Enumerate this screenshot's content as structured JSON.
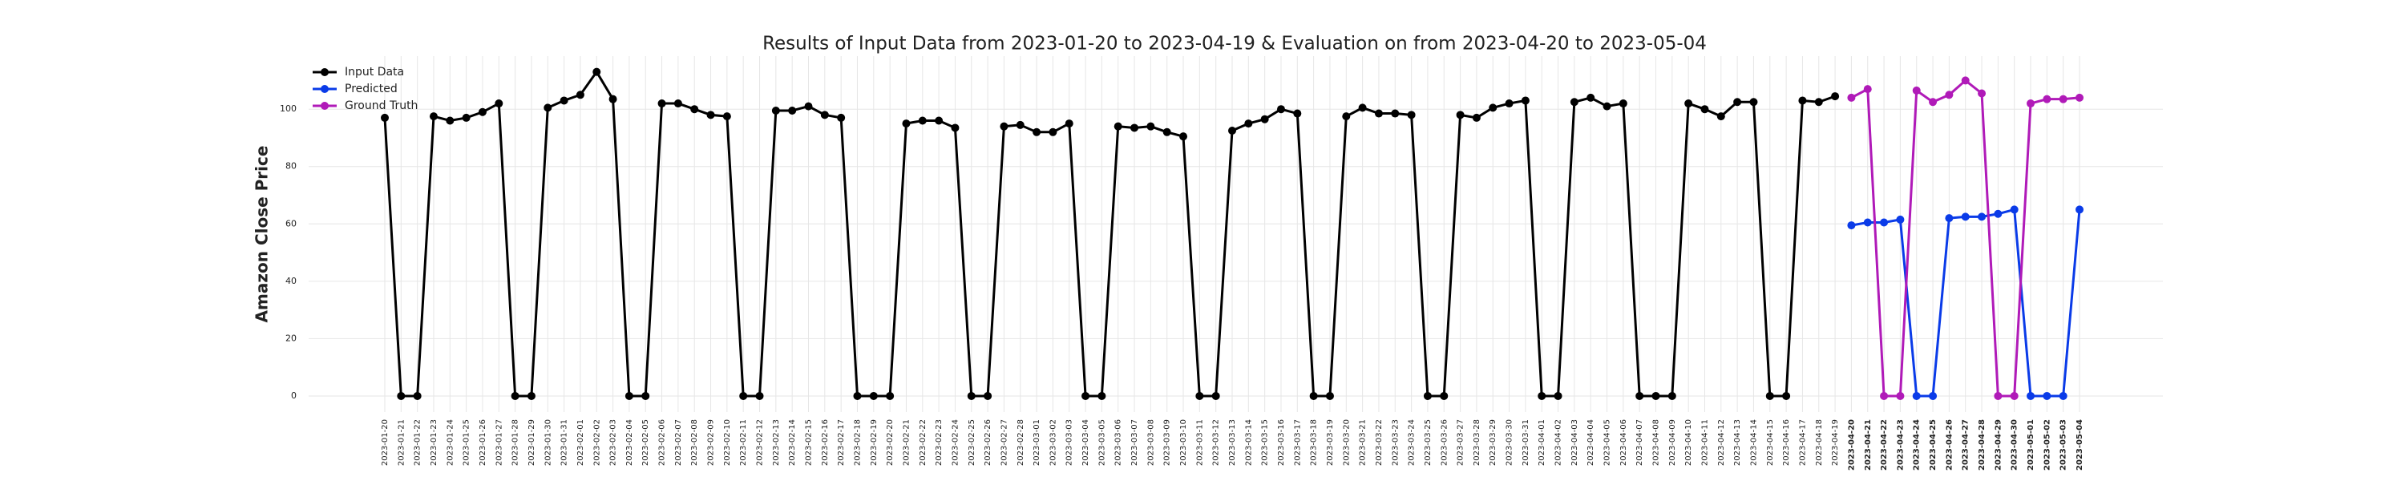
{
  "chart_data": {
    "type": "line",
    "title": "Results of Input Data from 2023-01-20 to 2023-04-19 & Evaluation on from 2023-04-20 to 2023-05-04",
    "y_label": "Amazon Close Price",
    "categories": [
      "2023-01-20",
      "2023-01-21",
      "2023-01-22",
      "2023-01-23",
      "2023-01-24",
      "2023-01-25",
      "2023-01-26",
      "2023-01-27",
      "2023-01-28",
      "2023-01-29",
      "2023-01-30",
      "2023-01-31",
      "2023-02-01",
      "2023-02-02",
      "2023-02-03",
      "2023-02-04",
      "2023-02-05",
      "2023-02-06",
      "2023-02-07",
      "2023-02-08",
      "2023-02-09",
      "2023-02-10",
      "2023-02-11",
      "2023-02-12",
      "2023-02-13",
      "2023-02-14",
      "2023-02-15",
      "2023-02-16",
      "2023-02-17",
      "2023-02-18",
      "2023-02-19",
      "2023-02-20",
      "2023-02-21",
      "2023-02-22",
      "2023-02-23",
      "2023-02-24",
      "2023-02-25",
      "2023-02-26",
      "2023-02-27",
      "2023-02-28",
      "2023-03-01",
      "2023-03-02",
      "2023-03-03",
      "2023-03-04",
      "2023-03-05",
      "2023-03-06",
      "2023-03-07",
      "2023-03-08",
      "2023-03-09",
      "2023-03-10",
      "2023-03-11",
      "2023-03-12",
      "2023-03-13",
      "2023-03-14",
      "2023-03-15",
      "2023-03-16",
      "2023-03-17",
      "2023-03-18",
      "2023-03-19",
      "2023-03-20",
      "2023-03-21",
      "2023-03-22",
      "2023-03-23",
      "2023-03-24",
      "2023-03-25",
      "2023-03-26",
      "2023-03-27",
      "2023-03-28",
      "2023-03-29",
      "2023-03-30",
      "2023-03-31",
      "2023-04-01",
      "2023-04-02",
      "2023-04-03",
      "2023-04-04",
      "2023-04-05",
      "2023-04-06",
      "2023-04-07",
      "2023-04-08",
      "2023-04-09",
      "2023-04-10",
      "2023-04-11",
      "2023-04-12",
      "2023-04-13",
      "2023-04-14",
      "2023-04-15",
      "2023-04-16",
      "2023-04-17",
      "2023-04-18",
      "2023-04-19",
      "2023-04-20",
      "2023-04-21",
      "2023-04-22",
      "2023-04-23",
      "2023-04-24",
      "2023-04-25",
      "2023-04-26",
      "2023-04-27",
      "2023-04-28",
      "2023-04-29",
      "2023-04-30",
      "2023-05-01",
      "2023-05-02",
      "2023-05-03",
      "2023-05-04"
    ],
    "series": [
      {
        "name": "Input Data",
        "color": "#000000",
        "values": [
          97,
          0,
          0,
          97.5,
          96,
          97,
          99,
          102,
          0,
          0,
          100.5,
          103,
          105,
          113,
          103.5,
          0,
          0,
          102,
          102,
          100,
          98,
          97.5,
          0,
          0,
          99.5,
          99.5,
          101,
          98,
          97,
          0,
          0,
          0,
          95,
          96,
          96,
          93.5,
          0,
          0,
          94,
          94.5,
          92,
          92,
          95,
          0,
          0,
          94,
          93.5,
          94,
          92,
          90.5,
          0,
          0,
          92.5,
          95,
          96.5,
          100,
          98.5,
          0,
          0,
          97.5,
          100.5,
          98.5,
          98.5,
          98,
          0,
          0,
          98,
          97,
          100.5,
          102,
          103,
          0,
          0,
          102.5,
          104,
          101,
          102,
          0,
          0,
          0,
          102,
          100,
          97.5,
          102.5,
          102.5,
          0,
          0,
          103,
          102.5,
          104.5,
          null,
          null,
          null,
          null,
          null,
          null,
          null,
          null,
          null,
          null,
          null,
          null,
          null,
          null,
          null
        ]
      },
      {
        "name": "Predicted",
        "color": "#0a3be8",
        "values": [
          null,
          null,
          null,
          null,
          null,
          null,
          null,
          null,
          null,
          null,
          null,
          null,
          null,
          null,
          null,
          null,
          null,
          null,
          null,
          null,
          null,
          null,
          null,
          null,
          null,
          null,
          null,
          null,
          null,
          null,
          null,
          null,
          null,
          null,
          null,
          null,
          null,
          null,
          null,
          null,
          null,
          null,
          null,
          null,
          null,
          null,
          null,
          null,
          null,
          null,
          null,
          null,
          null,
          null,
          null,
          null,
          null,
          null,
          null,
          null,
          null,
          null,
          null,
          null,
          null,
          null,
          null,
          null,
          null,
          null,
          null,
          null,
          null,
          null,
          null,
          null,
          null,
          null,
          null,
          null,
          null,
          null,
          null,
          null,
          null,
          null,
          null,
          null,
          null,
          null,
          59.5,
          60.5,
          60.5,
          61.5,
          0,
          0,
          62,
          62.5,
          62.5,
          63.5,
          65,
          0,
          0,
          0,
          65
        ]
      },
      {
        "name": "Ground Truth",
        "color": "#b01ab8",
        "values": [
          null,
          null,
          null,
          null,
          null,
          null,
          null,
          null,
          null,
          null,
          null,
          null,
          null,
          null,
          null,
          null,
          null,
          null,
          null,
          null,
          null,
          null,
          null,
          null,
          null,
          null,
          null,
          null,
          null,
          null,
          null,
          null,
          null,
          null,
          null,
          null,
          null,
          null,
          null,
          null,
          null,
          null,
          null,
          null,
          null,
          null,
          null,
          null,
          null,
          null,
          null,
          null,
          null,
          null,
          null,
          null,
          null,
          null,
          null,
          null,
          null,
          null,
          null,
          null,
          null,
          null,
          null,
          null,
          null,
          null,
          null,
          null,
          null,
          null,
          null,
          null,
          null,
          null,
          null,
          null,
          null,
          null,
          null,
          null,
          null,
          null,
          null,
          null,
          null,
          null,
          104,
          107,
          0,
          0,
          106.5,
          102.5,
          105,
          110,
          105.5,
          0,
          0,
          102,
          103.5,
          103.5,
          104
        ]
      }
    ],
    "ylim": [
      -5.6,
      118.5
    ],
    "yticks": [
      0,
      20,
      40,
      60,
      80,
      100
    ],
    "grid": true,
    "legend": "upper left"
  }
}
